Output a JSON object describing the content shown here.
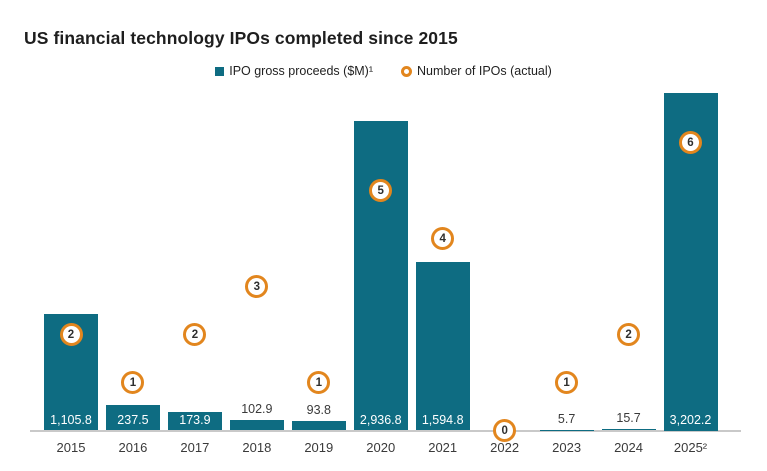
{
  "title": "US financial technology IPOs completed since 2015",
  "legend": {
    "items": [
      {
        "label": "IPO gross proceeds ($M)¹",
        "marker": "square"
      },
      {
        "label": "Number of IPOs (actual)",
        "marker": "ring"
      }
    ]
  },
  "colors": {
    "bar_teal": "#0e6c82",
    "marker_orange": "#e2861e",
    "axis_gray": "#c9c9c9",
    "text_dark": "#1e1e1e",
    "label_gray": "#3a3a3a",
    "label_white": "#ffffff"
  },
  "chart_data": {
    "type": "bar",
    "title": "US financial technology IPOs completed since 2015",
    "categories": [
      "2015",
      "2016",
      "2017",
      "2018",
      "2019",
      "2020",
      "2021",
      "2022",
      "2023",
      "2024",
      "2025²"
    ],
    "series": [
      {
        "name": "IPO gross proceeds ($M)",
        "type": "bar",
        "values": [
          1105.8,
          237.5,
          173.9,
          102.9,
          93.8,
          2936.8,
          1594.8,
          0,
          5.7,
          15.7,
          3202.2
        ],
        "data_labels": [
          "1,105.8",
          "237.5",
          "173.9",
          "102.9",
          "93.8",
          "2,936.8",
          "1,594.8",
          null,
          "5.7",
          "15.7",
          "3,202.2"
        ],
        "label_placement": [
          "inside",
          "inside",
          "inside",
          "above",
          "above",
          "inside",
          "inside",
          "none",
          "above",
          "above",
          "inside"
        ]
      },
      {
        "name": "Number of IPOs (actual)",
        "type": "scatter",
        "values": [
          2,
          1,
          2,
          3,
          1,
          5,
          4,
          0,
          1,
          2,
          6
        ]
      }
    ],
    "ylabel": "",
    "xlabel": "",
    "ylim": [
      0,
      3300
    ],
    "ylim_secondary": [
      0,
      7
    ],
    "grid": false,
    "legend_position": "top-center",
    "axes_visible": "x-baseline-only"
  }
}
